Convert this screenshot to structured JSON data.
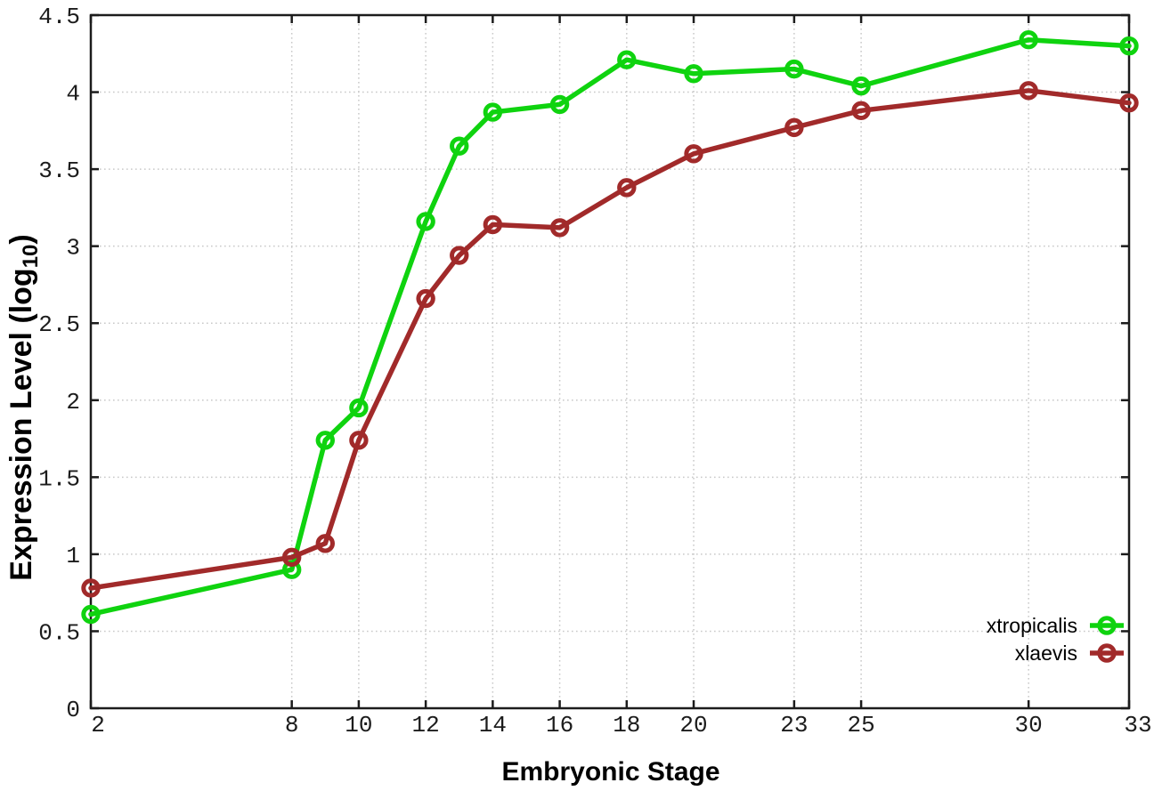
{
  "chart_data": {
    "type": "line",
    "title": "",
    "xlabel": "Embryonic Stage",
    "ylabel": "Expression Level (log10)",
    "ylabel_main": "Expression Level (log",
    "ylabel_sub": "10",
    "ylabel_end": ")",
    "x": [
      2,
      8,
      9,
      10,
      12,
      13,
      14,
      16,
      18,
      20,
      23,
      25,
      30,
      33
    ],
    "series": [
      {
        "name": "xtropicalis",
        "color": "#0fd30f",
        "values": [
          0.61,
          0.9,
          1.74,
          1.95,
          3.16,
          3.65,
          3.87,
          3.92,
          4.21,
          4.12,
          4.15,
          4.04,
          4.34,
          4.3
        ]
      },
      {
        "name": "xlaevis",
        "color": "#a12a2a",
        "values": [
          0.78,
          0.98,
          1.07,
          1.74,
          2.66,
          2.94,
          3.14,
          3.12,
          3.38,
          3.6,
          3.77,
          3.88,
          4.01,
          3.93
        ]
      }
    ],
    "xtick_values": [
      2,
      8,
      10,
      12,
      14,
      16,
      18,
      20,
      23,
      25,
      30,
      33
    ],
    "xtick_labels": [
      "2",
      "8",
      "10",
      "12",
      "14",
      "16",
      "18",
      "20",
      "23",
      "25",
      "30",
      "33"
    ],
    "ytick_values": [
      0,
      0.5,
      1,
      1.5,
      2,
      2.5,
      3,
      3.5,
      4,
      4.5
    ],
    "ytick_labels": [
      "0",
      "0.5",
      "1",
      "1.5",
      "2",
      "2.5",
      "3",
      "3.5",
      "4",
      "4.5"
    ],
    "xlim": [
      2,
      33
    ],
    "ylim": [
      0,
      4.5
    ],
    "grid": true,
    "legend_position": "bottom-right"
  },
  "colors": {
    "background": "#ffffff",
    "frame": "#1c1c1c",
    "grid": "#c9c9c9",
    "tick_text": "#1c1c1c",
    "series_green": "#0fd30f",
    "series_red": "#a12a2a"
  }
}
